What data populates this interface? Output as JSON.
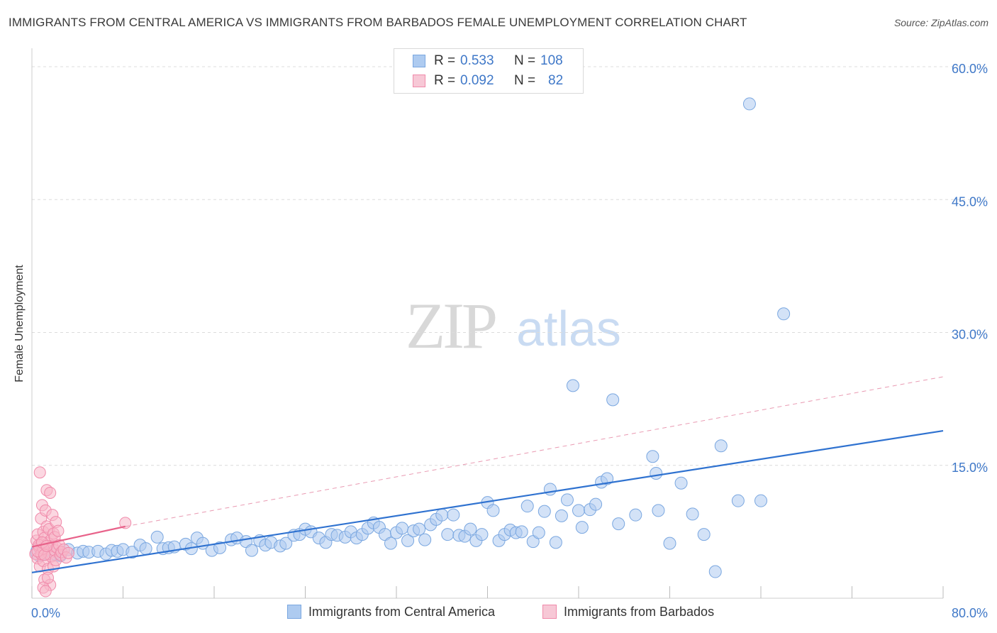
{
  "title": "IMMIGRANTS FROM CENTRAL AMERICA VS IMMIGRANTS FROM BARBADOS FEMALE UNEMPLOYMENT CORRELATION CHART",
  "source": "Source: ZipAtlas.com",
  "watermark": {
    "zip": "ZIP",
    "atlas": "atlas"
  },
  "legend": {
    "rows": [
      {
        "r_label": "R =",
        "r_value": "0.533",
        "n_label": "N =",
        "n_value": "108",
        "color": "#aecbf0"
      },
      {
        "r_label": "R =",
        "r_value": "0.092",
        "n_label": "N =",
        "n_value": "82",
        "color": "#f7b6c8"
      }
    ]
  },
  "chart_data": {
    "type": "scatter",
    "xlabel": "",
    "ylabel": "Female Unemployment",
    "xlim": [
      0,
      80
    ],
    "ylim": [
      0,
      62
    ],
    "x_tick_labels": [
      "0.0%",
      "80.0%"
    ],
    "y_ticks": [
      15,
      30,
      45,
      60
    ],
    "y_tick_labels": [
      "15.0%",
      "30.0%",
      "45.0%",
      "60.0%"
    ],
    "grid": "horizontal dashed",
    "legend_position": "top-center",
    "series": [
      {
        "name": "Immigrants from Central America",
        "color": "#7aa7e0",
        "fill": "#aecbf0",
        "trend": {
          "x": [
            0,
            80
          ],
          "y": [
            2.9,
            18.9
          ],
          "style": "solid",
          "color": "#2f72d0"
        },
        "points": [
          [
            1.0,
            5.2
          ],
          [
            2.0,
            5.0
          ],
          [
            2.5,
            4.8
          ],
          [
            3.2,
            5.5
          ],
          [
            4.0,
            5.1
          ],
          [
            4.5,
            5.3
          ],
          [
            5.0,
            5.2
          ],
          [
            5.8,
            5.3
          ],
          [
            6.5,
            5.0
          ],
          [
            7.0,
            5.4
          ],
          [
            7.5,
            5.3
          ],
          [
            8.0,
            5.5
          ],
          [
            8.8,
            5.2
          ],
          [
            9.5,
            6.0
          ],
          [
            10.0,
            5.6
          ],
          [
            11.0,
            6.9
          ],
          [
            11.5,
            5.6
          ],
          [
            12.0,
            5.7
          ],
          [
            12.5,
            5.8
          ],
          [
            13.5,
            6.1
          ],
          [
            14.0,
            5.6
          ],
          [
            14.5,
            6.8
          ],
          [
            15.0,
            6.2
          ],
          [
            15.8,
            5.4
          ],
          [
            16.5,
            5.7
          ],
          [
            17.5,
            6.6
          ],
          [
            18.0,
            6.8
          ],
          [
            18.8,
            6.4
          ],
          [
            19.3,
            5.4
          ],
          [
            20.0,
            6.5
          ],
          [
            20.5,
            6.0
          ],
          [
            21.0,
            6.3
          ],
          [
            21.8,
            5.9
          ],
          [
            22.3,
            6.2
          ],
          [
            23.0,
            7.1
          ],
          [
            23.5,
            7.2
          ],
          [
            24.0,
            7.8
          ],
          [
            24.5,
            7.5
          ],
          [
            25.2,
            6.8
          ],
          [
            25.8,
            6.3
          ],
          [
            26.3,
            7.2
          ],
          [
            26.8,
            7.1
          ],
          [
            27.5,
            6.9
          ],
          [
            28.0,
            7.5
          ],
          [
            28.5,
            6.8
          ],
          [
            29.0,
            7.2
          ],
          [
            29.5,
            7.9
          ],
          [
            30.0,
            8.5
          ],
          [
            30.5,
            8.0
          ],
          [
            31.0,
            7.2
          ],
          [
            31.5,
            6.2
          ],
          [
            32.0,
            7.4
          ],
          [
            32.5,
            7.9
          ],
          [
            33.0,
            6.5
          ],
          [
            33.5,
            7.6
          ],
          [
            34.0,
            7.8
          ],
          [
            34.5,
            6.6
          ],
          [
            35.0,
            8.3
          ],
          [
            35.5,
            8.9
          ],
          [
            36.0,
            9.4
          ],
          [
            36.5,
            7.2
          ],
          [
            37.0,
            9.4
          ],
          [
            37.5,
            7.1
          ],
          [
            38.0,
            7.0
          ],
          [
            38.5,
            7.8
          ],
          [
            39.0,
            6.5
          ],
          [
            39.5,
            7.2
          ],
          [
            40.0,
            10.8
          ],
          [
            40.5,
            9.9
          ],
          [
            41.0,
            6.5
          ],
          [
            41.5,
            7.2
          ],
          [
            42.0,
            7.7
          ],
          [
            42.5,
            7.4
          ],
          [
            43.0,
            7.5
          ],
          [
            43.5,
            10.4
          ],
          [
            44.0,
            6.4
          ],
          [
            44.5,
            7.4
          ],
          [
            45.0,
            9.8
          ],
          [
            45.5,
            12.3
          ],
          [
            46.0,
            6.3
          ],
          [
            46.5,
            9.3
          ],
          [
            47.0,
            11.1
          ],
          [
            47.5,
            24.0
          ],
          [
            48.0,
            9.9
          ],
          [
            48.3,
            8.0
          ],
          [
            49.0,
            10.0
          ],
          [
            49.5,
            10.6
          ],
          [
            50.0,
            13.1
          ],
          [
            50.5,
            13.5
          ],
          [
            51.0,
            22.4
          ],
          [
            51.5,
            8.4
          ],
          [
            53.0,
            9.4
          ],
          [
            54.5,
            16.0
          ],
          [
            54.8,
            14.1
          ],
          [
            55.0,
            9.9
          ],
          [
            56.0,
            6.2
          ],
          [
            57.0,
            13.0
          ],
          [
            58.0,
            9.5
          ],
          [
            59.0,
            7.2
          ],
          [
            60.0,
            3.0
          ],
          [
            60.5,
            17.2
          ],
          [
            62.0,
            11.0
          ],
          [
            63.0,
            55.8
          ],
          [
            64.0,
            11.0
          ],
          [
            66.0,
            32.1
          ]
        ]
      },
      {
        "name": "Immigrants from Barbados",
        "color": "#f08aaa",
        "fill": "#f7b6c8",
        "trend": {
          "x": [
            0,
            8.2
          ],
          "y": [
            5.8,
            8.1
          ],
          "style": "solid",
          "color": "#e8628a",
          "extension": {
            "x": [
              8.2,
              80
            ],
            "y": [
              8.1,
              25.0
            ],
            "style": "dashed"
          }
        },
        "points": [
          [
            0.3,
            5.0
          ],
          [
            0.4,
            6.5
          ],
          [
            0.5,
            4.5
          ],
          [
            0.5,
            7.2
          ],
          [
            0.6,
            5.8
          ],
          [
            0.7,
            14.2
          ],
          [
            0.7,
            3.6
          ],
          [
            0.8,
            6.1
          ],
          [
            0.8,
            9.0
          ],
          [
            0.9,
            5.3
          ],
          [
            0.9,
            10.5
          ],
          [
            1.0,
            7.5
          ],
          [
            1.0,
            4.2
          ],
          [
            1.1,
            6.8
          ],
          [
            1.1,
            2.1
          ],
          [
            1.2,
            5.5
          ],
          [
            1.2,
            9.9
          ],
          [
            1.3,
            8.1
          ],
          [
            1.3,
            12.2
          ],
          [
            1.4,
            6.2
          ],
          [
            1.4,
            3.3
          ],
          [
            1.5,
            7.8
          ],
          [
            1.5,
            5.0
          ],
          [
            1.6,
            11.9
          ],
          [
            1.6,
            1.5
          ],
          [
            1.7,
            6.6
          ],
          [
            1.7,
            4.7
          ],
          [
            1.8,
            9.4
          ],
          [
            1.8,
            5.9
          ],
          [
            1.9,
            7.3
          ],
          [
            1.9,
            3.6
          ],
          [
            2.0,
            5.4
          ],
          [
            2.0,
            6.9
          ],
          [
            2.1,
            8.6
          ],
          [
            2.1,
            4.3
          ],
          [
            2.2,
            5.7
          ],
          [
            2.3,
            7.6
          ],
          [
            2.4,
            6.0
          ],
          [
            2.5,
            4.9
          ],
          [
            2.6,
            5.2
          ],
          [
            2.8,
            5.5
          ],
          [
            3.0,
            4.6
          ],
          [
            3.2,
            5.1
          ],
          [
            1.0,
            1.2
          ],
          [
            1.4,
            2.3
          ],
          [
            1.2,
            0.8
          ],
          [
            0.6,
            6.0
          ],
          [
            0.8,
            5.0
          ],
          [
            1.0,
            5.6
          ],
          [
            0.5,
            5.3
          ],
          [
            0.9,
            6.3
          ],
          [
            1.1,
            4.9
          ],
          [
            1.3,
            5.9
          ],
          [
            8.2,
            8.5
          ]
        ]
      }
    ]
  },
  "bottom_legend": [
    {
      "label": "Immigrants from Central America",
      "color": "#aecbf0"
    },
    {
      "label": "Immigrants from Barbados",
      "color": "#f7b6c8"
    }
  ]
}
